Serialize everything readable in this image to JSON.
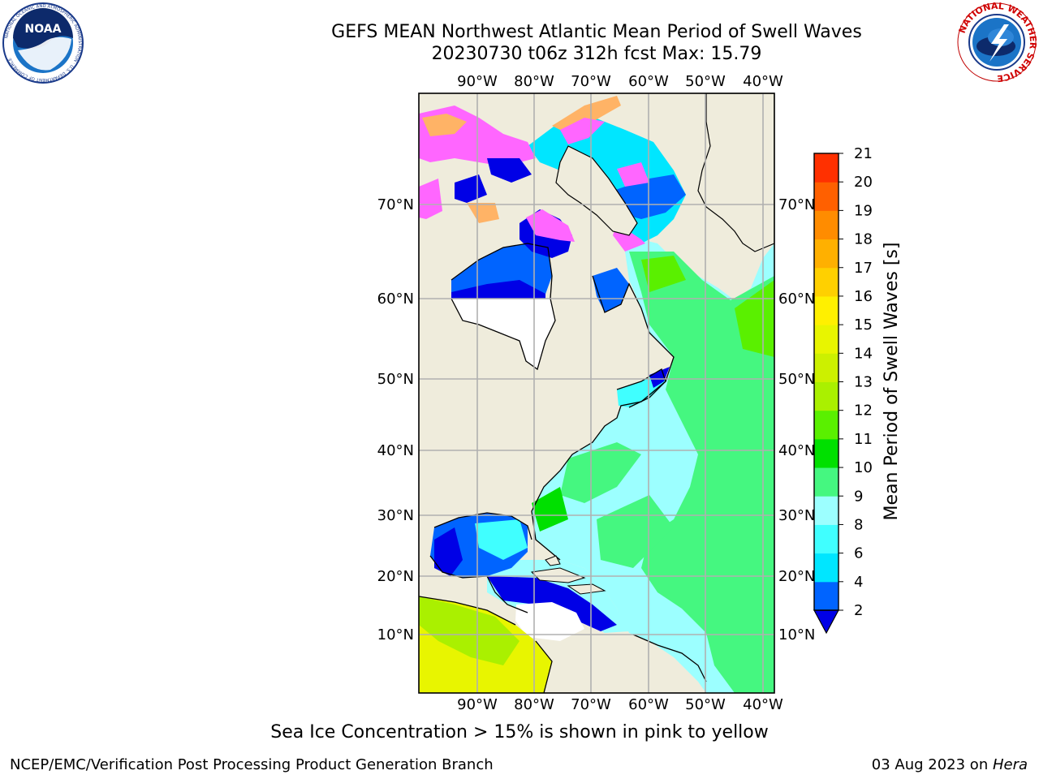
{
  "header": {
    "title": "GEFS MEAN Northwest Atlantic Mean Period of Swell Waves",
    "subtitle": "20230730 t06z 312h fcst   Max: 15.79"
  },
  "logos": {
    "left": {
      "name": "noaa-logo",
      "text": "NOAA",
      "ring_text": "NATIONAL OCEANIC AND ATMOSPHERIC ADMINISTRATION · U.S. DEPARTMENT OF COMMERCE"
    },
    "right": {
      "name": "nws-logo",
      "ring_text": "NATIONAL WEATHER SERVICE"
    }
  },
  "map": {
    "lon_labels": [
      "90°W",
      "80°W",
      "70°W",
      "60°W",
      "50°W",
      "40°W"
    ],
    "lat_labels": [
      "70°N",
      "60°N",
      "50°N",
      "40°N",
      "30°N",
      "20°N",
      "10°N"
    ],
    "colors": {
      "land": "#efecdc",
      "gridline": "#b0b0b0",
      "ice_region": "#ffffff"
    }
  },
  "colorbar": {
    "label": "Mean Period of Swell Waves [s]",
    "ticks": [
      "2",
      "4",
      "6",
      "8",
      "9",
      "10",
      "11",
      "12",
      "13",
      "14",
      "15",
      "16",
      "17",
      "18",
      "19",
      "20",
      "21"
    ],
    "colors": [
      "#0064ff",
      "#00e6ff",
      "#40ffff",
      "#9cffff",
      "#45f780",
      "#00e000",
      "#5af000",
      "#aaf000",
      "#ccf000",
      "#e8f500",
      "#fff000",
      "#ffd000",
      "#ffb000",
      "#ff8c00",
      "#ff6000",
      "#ff3000",
      "#ff0000"
    ],
    "under_color": "#0000e6"
  },
  "note": "Sea Ice Concentration > 15% is shown in pink to yellow",
  "footer": {
    "left": "NCEP/EMC/Verification Post Processing Product Generation Branch",
    "right_date": "03 Aug 2023 on ",
    "right_machine": "Hera"
  }
}
